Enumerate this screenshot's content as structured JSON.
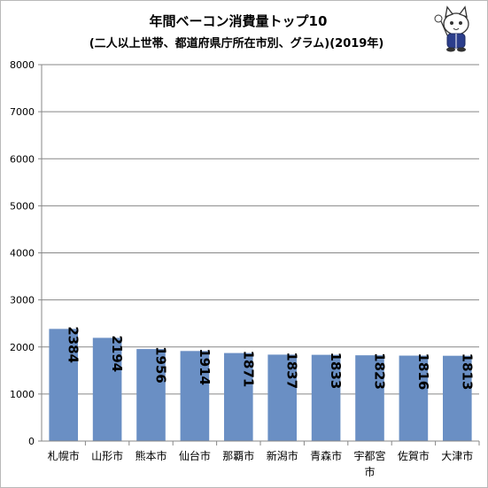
{
  "chart_data": {
    "type": "bar",
    "title": "年間ベーコン消費量トップ10",
    "subtitle": "(二人以上世帯、都道府県庁所在市別、グラム)(2019年)",
    "categories": [
      "札幌市",
      "山形市",
      "熊本市",
      "仙台市",
      "那覇市",
      "新潟市",
      "青森市",
      "宇都宮市",
      "佐賀市",
      "大津市"
    ],
    "values": [
      2384,
      2194,
      1956,
      1914,
      1871,
      1837,
      1833,
      1823,
      1816,
      1813
    ],
    "value_labels": [
      "2384",
      "2194",
      "1956",
      "1914",
      "1871",
      "1837",
      "1833",
      "1823",
      "1816",
      "1813"
    ],
    "xlabel": "",
    "ylabel": "",
    "ylim": [
      0,
      8000
    ],
    "yticks": [
      0,
      1000,
      2000,
      3000,
      4000,
      5000,
      6000,
      7000,
      8000
    ],
    "ytick_labels": [
      "0",
      "1000",
      "2000",
      "3000",
      "4000",
      "5000",
      "6000",
      "7000",
      "8000"
    ],
    "grid": true,
    "legend": "none",
    "bar_color": "#6a8fc4",
    "grid_color": "#878787"
  },
  "mascot_icon": "cat-mascot-icon"
}
